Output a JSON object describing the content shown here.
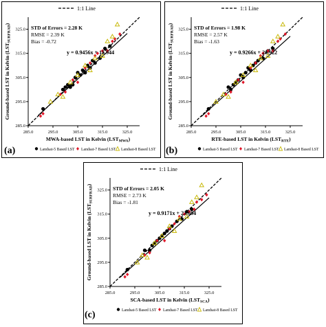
{
  "figure": {
    "panel_labels": [
      "(a)",
      "(b)",
      "(c)"
    ],
    "legend_items": [
      {
        "label": "Landsat-5 Based LST",
        "marker": "circle",
        "color": "#000000"
      },
      {
        "label": "Landsat-7 Based LST",
        "marker": "diamond",
        "color": "#e0182a"
      },
      {
        "label": "Landsat-8 Based LST",
        "marker": "triangle",
        "color": "#e6e62a"
      }
    ],
    "one_to_one_label": "1:1 Line"
  },
  "chart_data": [
    {
      "type": "scatter",
      "panel": "(a)",
      "xlabel": "MWA-based LST in Kelvin (LST",
      "xlabel_sub": "MWA",
      "ylabel": "Ground-based LST in Kelvin (LST",
      "ylabel_sub": "SURFRAD",
      "xlim": [
        285,
        330
      ],
      "ylim": [
        285,
        330
      ],
      "ticks": [
        285.0,
        295.0,
        305.0,
        315.0,
        325.0
      ],
      "tick_labels": [
        "285.0",
        "295.0",
        "305.0",
        "315.0",
        "325.0"
      ],
      "stats": [
        "STD of Errors = 2.28 K",
        "RMSE = 2.39 K",
        "Bias = -0.72"
      ],
      "equation": "y = 0.9456x + 15.944",
      "fit": {
        "slope": 0.9456,
        "intercept": 15.944
      },
      "grid": false,
      "series": [
        {
          "name": "Landsat-5 Based LST",
          "points": [
            [
              291,
              292
            ],
            [
              299,
              300
            ],
            [
              300,
              301
            ],
            [
              301,
              302
            ],
            [
              302,
              301
            ],
            [
              303,
              302
            ],
            [
              304,
              305
            ],
            [
              305,
              307
            ],
            [
              306,
              306
            ],
            [
              307,
              308
            ],
            [
              308,
              307
            ],
            [
              309,
              310
            ],
            [
              310,
              309
            ],
            [
              311,
              312
            ],
            [
              312,
              311
            ],
            [
              314,
              313
            ],
            [
              316,
              317
            ],
            [
              318,
              318
            ]
          ]
        },
        {
          "name": "Landsat-7 Based LST",
          "points": [
            [
              290,
              289
            ],
            [
              291,
              290
            ],
            [
              298,
              298
            ],
            [
              300,
              299
            ],
            [
              303,
              304
            ],
            [
              305,
              303
            ],
            [
              308,
              309
            ],
            [
              310,
              311
            ],
            [
              312,
              314
            ],
            [
              313,
              315
            ],
            [
              315,
              316
            ],
            [
              317,
              316
            ],
            [
              319,
              320
            ],
            [
              320,
              321
            ],
            [
              322,
              323
            ]
          ]
        },
        {
          "name": "Landsat-8 Based LST",
          "points": [
            [
              294,
              295
            ],
            [
              297,
              298
            ],
            [
              299,
              297
            ],
            [
              302,
              303
            ],
            [
              305,
              306
            ],
            [
              308,
              310
            ],
            [
              310,
              308
            ],
            [
              312,
              313
            ],
            [
              315,
              314
            ],
            [
              317,
              320
            ],
            [
              319,
              322
            ],
            [
              321,
              327
            ]
          ]
        }
      ]
    },
    {
      "type": "scatter",
      "panel": "(b)",
      "xlabel": "RTE-based LST in Kelvin (LST",
      "xlabel_sub": "RTE",
      "ylabel": "Ground-based LST in Kelvin (LST",
      "ylabel_sub": "SURFRAD",
      "xlim": [
        285,
        330
      ],
      "ylim": [
        285,
        330
      ],
      "ticks": [
        285.0,
        295.0,
        305.0,
        315.0,
        325.0
      ],
      "tick_labels": [
        "285.0",
        "295.0",
        "305.0",
        "315.0",
        "325.0"
      ],
      "stats": [
        "STD of Errors = 1.98 K",
        "RMSE = 2.57 K",
        "Bias = -1.63"
      ],
      "equation": "y = 0.9266x + 20.922",
      "fit": {
        "slope": 0.9266,
        "intercept": 20.922
      },
      "grid": false,
      "series": [
        {
          "name": "Landsat-5 Based LST",
          "points": [
            [
              292,
              292
            ],
            [
              300,
              301
            ],
            [
              301,
              300
            ],
            [
              302,
              302
            ],
            [
              303,
              303
            ],
            [
              304,
              304
            ],
            [
              305,
              306
            ],
            [
              306,
              305
            ],
            [
              307,
              307
            ],
            [
              308,
              309
            ],
            [
              309,
              308
            ],
            [
              310,
              310
            ],
            [
              311,
              311
            ],
            [
              312,
              312
            ],
            [
              314,
              313
            ],
            [
              316,
              316
            ],
            [
              318,
              317
            ]
          ]
        },
        {
          "name": "Landsat-7 Based LST",
          "points": [
            [
              291,
              289
            ],
            [
              292,
              290
            ],
            [
              299,
              298
            ],
            [
              301,
              299
            ],
            [
              304,
              304
            ],
            [
              306,
              303
            ],
            [
              309,
              309
            ],
            [
              311,
              311
            ],
            [
              313,
              314
            ],
            [
              314,
              315
            ],
            [
              316,
              316
            ],
            [
              318,
              316
            ],
            [
              320,
              320
            ],
            [
              321,
              321
            ],
            [
              323,
              323
            ]
          ]
        },
        {
          "name": "Landsat-8 Based LST",
          "points": [
            [
              295,
              295
            ],
            [
              298,
              298
            ],
            [
              300,
              297
            ],
            [
              303,
              303
            ],
            [
              306,
              306
            ],
            [
              309,
              310
            ],
            [
              311,
              308
            ],
            [
              313,
              313
            ],
            [
              316,
              314
            ],
            [
              318,
              320
            ],
            [
              320,
              322
            ],
            [
              322,
              327
            ]
          ]
        }
      ]
    },
    {
      "type": "scatter",
      "panel": "(c)",
      "xlabel": "SCA-based LST in Kelvin (LST",
      "xlabel_sub": "SCA",
      "ylabel": "Ground-based LST in Kelvin (LST",
      "ylabel_sub": "SURFRAD",
      "xlim": [
        285,
        330
      ],
      "ylim": [
        285,
        330
      ],
      "ticks": [
        285.0,
        295.0,
        305.0,
        315.0,
        325.0
      ],
      "tick_labels": [
        "285.0",
        "295.0",
        "305.0",
        "315.0",
        "325.0"
      ],
      "stats": [
        "STD of Errors = 2.05 K",
        "RMSE = 2.73 K",
        "Bias = -1.81"
      ],
      "equation": "y = 0.9171x + 23.694",
      "fit": {
        "slope": 0.9171,
        "intercept": 23.694
      },
      "grid": false,
      "series": [
        {
          "name": "Landsat-5 Based LST",
          "points": [
            [
              292,
              292
            ],
            [
              299,
              300
            ],
            [
              301,
              300
            ],
            [
              302,
              302
            ],
            [
              303,
              303
            ],
            [
              304,
              304
            ],
            [
              305,
              305
            ],
            [
              306,
              306
            ],
            [
              307,
              307
            ],
            [
              308,
              308
            ],
            [
              309,
              309
            ],
            [
              310,
              310
            ],
            [
              312,
              312
            ],
            [
              314,
              313
            ],
            [
              316,
              316
            ],
            [
              318,
              317
            ]
          ]
        },
        {
          "name": "Landsat-7 Based LST",
          "points": [
            [
              291,
              289
            ],
            [
              292,
              290
            ],
            [
              299,
              298
            ],
            [
              301,
              299
            ],
            [
              304,
              304
            ],
            [
              307,
              304
            ],
            [
              309,
              309
            ],
            [
              311,
              311
            ],
            [
              313,
              314
            ],
            [
              315,
              315
            ],
            [
              317,
              316
            ],
            [
              319,
              317
            ],
            [
              320,
              320
            ],
            [
              322,
              321
            ],
            [
              324,
              323
            ]
          ]
        },
        {
          "name": "Landsat-8 Based LST",
          "points": [
            [
              296,
              295
            ],
            [
              298,
              298
            ],
            [
              300,
              297
            ],
            [
              303,
              303
            ],
            [
              306,
              306
            ],
            [
              309,
              310
            ],
            [
              311,
              308
            ],
            [
              313,
              313
            ],
            [
              316,
              314
            ],
            [
              318,
              320
            ],
            [
              320,
              322
            ],
            [
              322,
              327
            ]
          ]
        }
      ]
    }
  ]
}
